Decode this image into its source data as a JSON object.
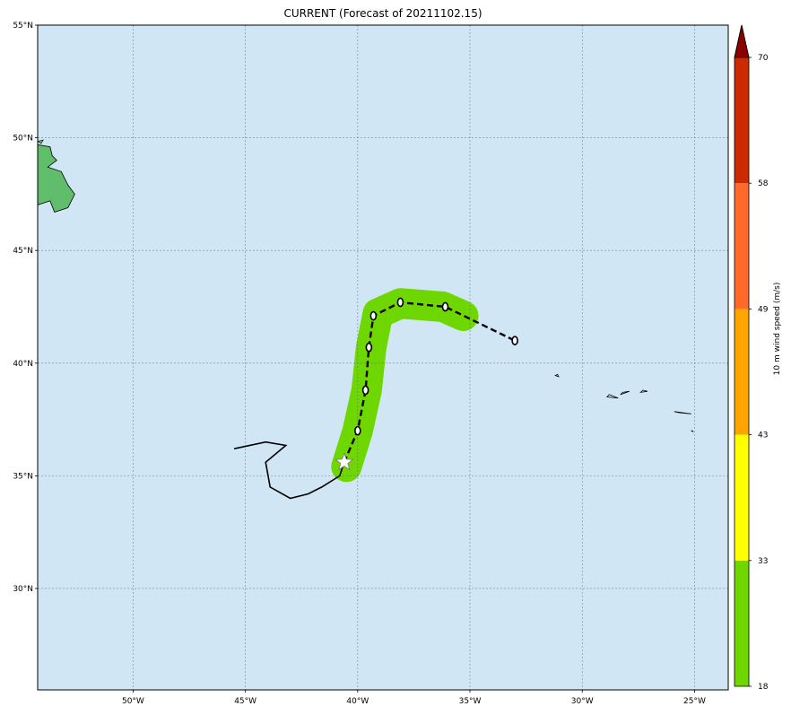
{
  "title": "CURRENT (Forecast of 20211102.15)",
  "map": {
    "lon_range": [
      -54.25,
      -23.5
    ],
    "lat_range": [
      25.5,
      55
    ],
    "ocean_color": "#d0e6f5",
    "land_color": "#5fbd6c",
    "grid": true,
    "lat_ticks": [
      {
        "value": 55,
        "label": "55°N"
      },
      {
        "value": 50,
        "label": "50°N"
      },
      {
        "value": 45,
        "label": "45°N"
      },
      {
        "value": 40,
        "label": "40°N"
      },
      {
        "value": 35,
        "label": "35°N"
      },
      {
        "value": 30,
        "label": "30°N"
      }
    ],
    "lon_ticks": [
      {
        "value": -50,
        "label": "50°W"
      },
      {
        "value": -45,
        "label": "45°W"
      },
      {
        "value": -40,
        "label": "40°W"
      },
      {
        "value": -35,
        "label": "35°W"
      },
      {
        "value": -30,
        "label": "30°W"
      },
      {
        "value": -25,
        "label": "25°W"
      }
    ]
  },
  "past_track": [
    [
      -45.5,
      36.2
    ],
    [
      -44.1,
      36.5
    ],
    [
      -43.2,
      36.35
    ],
    [
      -44.1,
      35.6
    ],
    [
      -43.9,
      34.5
    ],
    [
      -43.0,
      34.0
    ],
    [
      -42.2,
      34.2
    ],
    [
      -41.6,
      34.5
    ],
    [
      -40.8,
      35.0
    ],
    [
      -40.6,
      35.6
    ]
  ],
  "forecast_track": [
    [
      -40.6,
      35.6
    ],
    [
      -40.0,
      37.0
    ],
    [
      -39.65,
      38.8
    ],
    [
      -39.5,
      40.7
    ],
    [
      -39.3,
      42.1
    ],
    [
      -38.1,
      42.7
    ],
    [
      -36.1,
      42.5
    ],
    [
      -33.0,
      41.0
    ]
  ],
  "forecast_points": [
    [
      -40.0,
      37.0
    ],
    [
      -39.65,
      38.8
    ],
    [
      -39.5,
      40.7
    ],
    [
      -39.3,
      42.1
    ],
    [
      -38.1,
      42.7
    ],
    [
      -36.1,
      42.5
    ],
    [
      -33.0,
      41.0
    ]
  ],
  "current_position": [
    -40.6,
    35.6
  ],
  "wind_swath": {
    "path": [
      [
        -40.5,
        35.4
      ],
      [
        -40.0,
        37.0
      ],
      [
        -39.6,
        38.8
      ],
      [
        -39.4,
        40.7
      ],
      [
        -39.1,
        42.2
      ],
      [
        -38.1,
        42.65
      ],
      [
        -36.2,
        42.5
      ],
      [
        -35.3,
        42.1
      ]
    ],
    "color": "#6fd700"
  },
  "islands": [
    [
      [
        -31.05,
        39.4
      ],
      [
        -31.2,
        39.45
      ],
      [
        -31.1,
        39.5
      ]
    ],
    [
      [
        -28.9,
        38.5
      ],
      [
        -28.4,
        38.45
      ],
      [
        -28.8,
        38.6
      ]
    ],
    [
      [
        -28.3,
        38.6
      ],
      [
        -27.9,
        38.75
      ],
      [
        -28.2,
        38.7
      ]
    ],
    [
      [
        -27.4,
        38.7
      ],
      [
        -27.1,
        38.75
      ],
      [
        -27.3,
        38.8
      ]
    ],
    [
      [
        -25.9,
        37.85
      ],
      [
        -25.15,
        37.75
      ],
      [
        -25.7,
        37.8
      ]
    ],
    [
      [
        -25.15,
        37.0
      ],
      [
        -25.05,
        36.95
      ],
      [
        -25.1,
        37.0
      ]
    ]
  ],
  "colorbar": {
    "label": "10 m wind speed (m/s)",
    "extend_max_color": "#8b0000",
    "segments": [
      {
        "from": 18,
        "to": 33,
        "color": "#6fd700"
      },
      {
        "from": 33,
        "to": 43,
        "color": "#ffff00"
      },
      {
        "from": 43,
        "to": 49,
        "color": "#ffa500"
      },
      {
        "from": 49,
        "to": 58,
        "color": "#ff6a2a"
      },
      {
        "from": 58,
        "to": 70,
        "color": "#cc2a00"
      }
    ],
    "ticks": [
      "18",
      "33",
      "43",
      "49",
      "58",
      "70"
    ]
  }
}
